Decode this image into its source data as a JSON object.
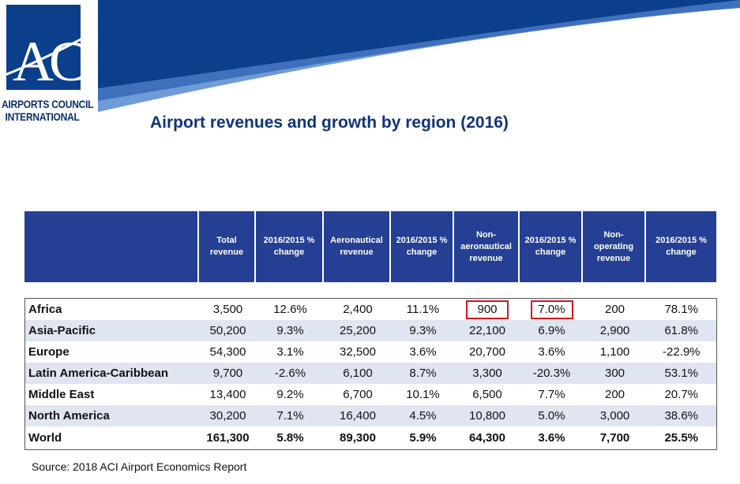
{
  "org": {
    "name_line1": "AIRPORTS COUNCIL",
    "name_line2": "INTERNATIONAL",
    "logo_letters": "ACI"
  },
  "colors": {
    "dark_blue": "#0b3f8c",
    "mid_blue": "#3b6bb5",
    "light_blue": "#6f9bd6",
    "header_blue": "#243f93",
    "highlight": "#d8141c"
  },
  "title": "Airport revenues and growth by region (2016)",
  "table": {
    "columns": [
      "",
      "Total revenue",
      "2016/2015 % change",
      "Aeronautical revenue",
      "2016/2015 % change",
      "Non-aeronautical revenue",
      "2016/2015 % change",
      "Non-operating revenue",
      "2016/2015 % change"
    ],
    "rows": [
      {
        "region": "Africa",
        "cells": [
          "3,500",
          "12.6%",
          "2,400",
          "11.1%",
          "900",
          "7.0%",
          "200",
          "78.1%"
        ]
      },
      {
        "region": "Asia-Pacific",
        "cells": [
          "50,200",
          "9.3%",
          "25,200",
          "9.3%",
          "22,100",
          "6.9%",
          "2,900",
          "61.8%"
        ]
      },
      {
        "region": "Europe",
        "cells": [
          "54,300",
          "3.1%",
          "32,500",
          "3.6%",
          "20,700",
          "3.6%",
          "1,100",
          "-22.9%"
        ]
      },
      {
        "region": "Latin America-Caribbean",
        "cells": [
          "9,700",
          "-2.6%",
          "6,100",
          "8.7%",
          "3,300",
          "-20.3%",
          "300",
          "53.1%"
        ]
      },
      {
        "region": "Middle East",
        "cells": [
          "13,400",
          "9.2%",
          "6,700",
          "10.1%",
          "6,500",
          "7.7%",
          "200",
          "20.7%"
        ]
      },
      {
        "region": "North America",
        "cells": [
          "30,200",
          "7.1%",
          "16,400",
          "4.5%",
          "10,800",
          "5.0%",
          "3,000",
          "38.6%"
        ]
      },
      {
        "region": "World",
        "cells": [
          "161,300",
          "5.8%",
          "89,300",
          "5.9%",
          "64,300",
          "3.6%",
          "7,700",
          "25.5%"
        ]
      }
    ]
  },
  "source": "Source: 2018 ACI Airport Economics Report"
}
